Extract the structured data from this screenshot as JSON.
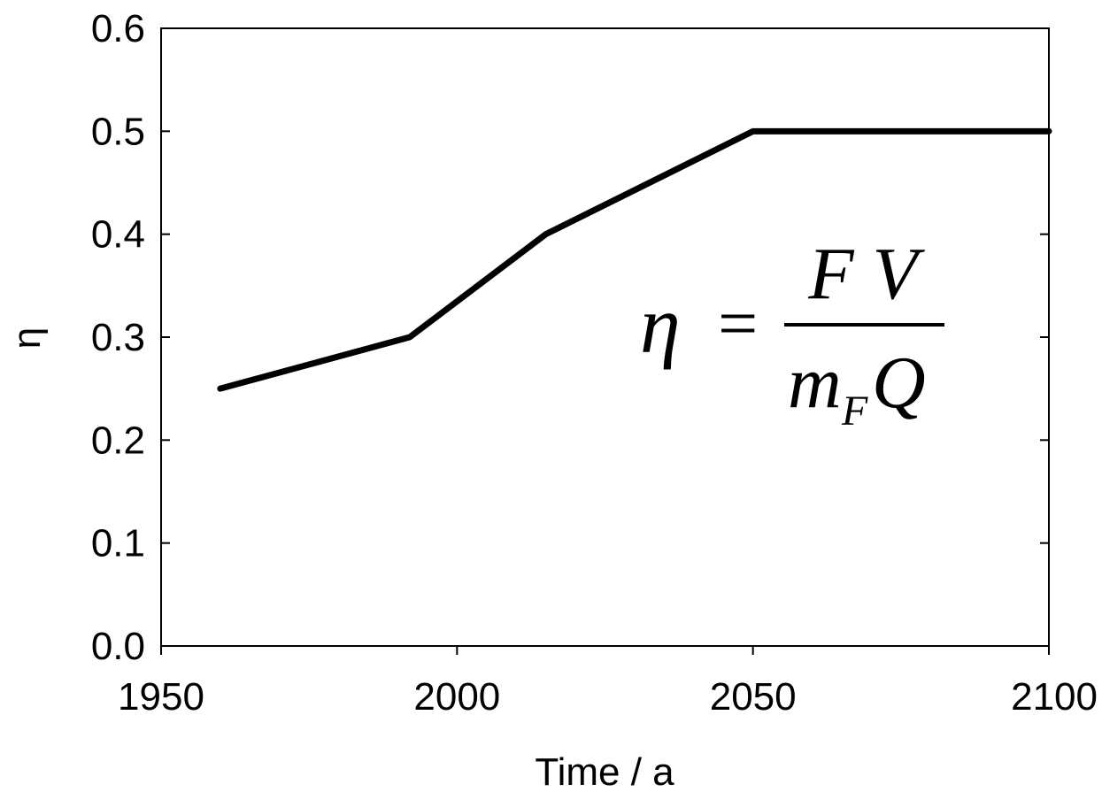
{
  "chart_data": {
    "type": "line",
    "title": "",
    "xlabel": "Time / a",
    "ylabel": "η",
    "xlim": [
      1950,
      2100
    ],
    "ylim": [
      0,
      0.6
    ],
    "xticks": [
      1950,
      2000,
      2050,
      2100
    ],
    "xtick_labels": [
      "1950",
      "2000",
      "2050",
      "2100"
    ],
    "yticks": [
      0,
      0.1,
      0.2,
      0.3,
      0.4,
      0.5,
      0.6
    ],
    "ytick_labels": [
      "0.0",
      "0.1",
      "0.2",
      "0.3",
      "0.4",
      "0.5",
      "0.6"
    ],
    "grid": false,
    "series": [
      {
        "x": [
          1960,
          1992,
          2015,
          2050,
          2100
        ],
        "y": [
          0.25,
          0.3,
          0.4,
          0.5,
          0.5
        ]
      }
    ],
    "line_color": "#000000",
    "annotation": {
      "lhs": "η",
      "equals": "=",
      "numerator": "F V",
      "denominator_m": "m",
      "denominator_sub": "F",
      "denominator_q": "Q"
    }
  }
}
